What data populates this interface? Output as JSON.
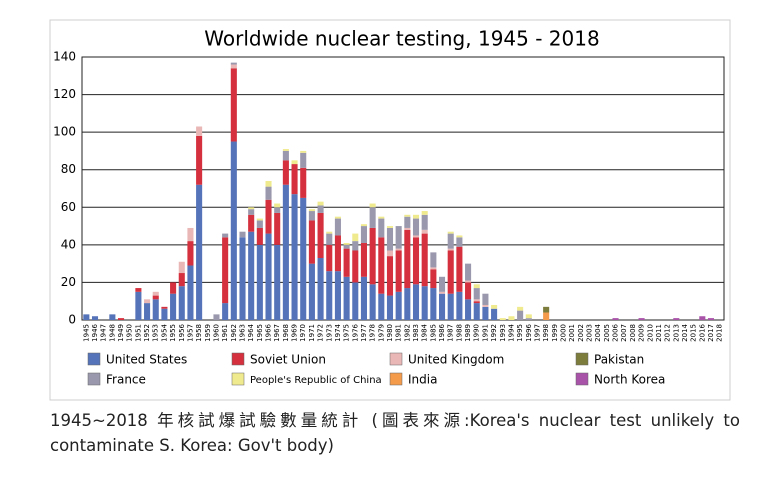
{
  "chart_data": {
    "type": "bar",
    "stacked": true,
    "title": "Worldwide nuclear testing, 1945 - 2018",
    "categories": [
      "1945",
      "1946",
      "1947",
      "1948",
      "1949",
      "1950",
      "1951",
      "1952",
      "1953",
      "1954",
      "1955",
      "1956",
      "1957",
      "1958",
      "1959",
      "1960",
      "1961",
      "1962",
      "1963",
      "1964",
      "1965",
      "1966",
      "1967",
      "1968",
      "1969",
      "1970",
      "1971",
      "1972",
      "1973",
      "1974",
      "1975",
      "1976",
      "1977",
      "1978",
      "1979",
      "1980",
      "1981",
      "1982",
      "1983",
      "1984",
      "1985",
      "1986",
      "1987",
      "1988",
      "1989",
      "1990",
      "1991",
      "1992",
      "1993",
      "1994",
      "1995",
      "1996",
      "1997",
      "1998",
      "1999",
      "2000",
      "2001",
      "2002",
      "2003",
      "2004",
      "2005",
      "2006",
      "2007",
      "2008",
      "2009",
      "2010",
      "2011",
      "2012",
      "2013",
      "2014",
      "2015",
      "2016",
      "2017",
      "2018"
    ],
    "series": [
      {
        "name": "United States",
        "color": "#5573b8",
        "values": [
          3,
          2,
          0,
          3,
          0,
          0,
          15,
          9,
          11,
          6,
          14,
          18,
          29,
          72,
          0,
          0,
          9,
          95,
          44,
          47,
          40,
          46,
          40,
          72,
          67,
          65,
          30,
          33,
          26,
          26,
          23,
          20,
          23,
          19,
          14,
          13,
          15,
          17,
          19,
          18,
          17,
          14,
          14,
          15,
          11,
          9,
          7,
          6,
          0,
          0,
          0,
          0,
          0,
          0,
          0,
          0,
          0,
          0,
          0,
          0,
          0,
          0,
          0,
          0,
          0,
          0,
          0,
          0,
          0,
          0,
          0,
          0,
          0,
          0
        ]
      },
      {
        "name": "Soviet Union",
        "color": "#d4303d",
        "values": [
          0,
          0,
          0,
          0,
          1,
          0,
          2,
          0,
          2,
          1,
          6,
          7,
          13,
          26,
          0,
          0,
          35,
          39,
          0,
          9,
          9,
          18,
          17,
          13,
          16,
          16,
          23,
          24,
          14,
          19,
          15,
          17,
          18,
          30,
          30,
          21,
          22,
          31,
          25,
          28,
          10,
          0,
          23,
          24,
          9,
          1,
          0,
          0,
          0,
          0,
          0,
          0,
          0,
          0,
          0,
          0,
          0,
          0,
          0,
          0,
          0,
          0,
          0,
          0,
          0,
          0,
          0,
          0,
          0,
          0,
          0,
          0,
          0,
          0
        ]
      },
      {
        "name": "United Kingdom",
        "color": "#eab7b7",
        "values": [
          0,
          0,
          0,
          0,
          0,
          0,
          0,
          2,
          2,
          0,
          0,
          6,
          7,
          5,
          0,
          0,
          0,
          2,
          0,
          0,
          0,
          0,
          0,
          0,
          0,
          0,
          0,
          0,
          0,
          0,
          0,
          0,
          0,
          0,
          0,
          3,
          1,
          1,
          1,
          2,
          1,
          1,
          1,
          0,
          1,
          1,
          1,
          0,
          0,
          0,
          0,
          0,
          0,
          0,
          0,
          0,
          0,
          0,
          0,
          0,
          0,
          0,
          0,
          0,
          0,
          0,
          0,
          0,
          0,
          0,
          0,
          0,
          0,
          0
        ]
      },
      {
        "name": "France",
        "color": "#9a98ad",
        "values": [
          0,
          0,
          0,
          0,
          0,
          0,
          0,
          0,
          0,
          0,
          0,
          0,
          0,
          0,
          0,
          3,
          2,
          1,
          3,
          3,
          4,
          7,
          3,
          5,
          0,
          8,
          5,
          4,
          6,
          9,
          2,
          5,
          9,
          11,
          10,
          12,
          12,
          6,
          9,
          8,
          8,
          8,
          8,
          5,
          9,
          6,
          6,
          0,
          0,
          0,
          5,
          1,
          0,
          0,
          0,
          0,
          0,
          0,
          0,
          0,
          0,
          0,
          0,
          0,
          0,
          0,
          0,
          0,
          0,
          0,
          0,
          0,
          0,
          0
        ]
      },
      {
        "name": "People's Republic of China",
        "color": "#f0ea8e",
        "values": [
          0,
          0,
          0,
          0,
          0,
          0,
          0,
          0,
          0,
          0,
          0,
          0,
          0,
          0,
          0,
          0,
          0,
          0,
          0,
          1,
          1,
          3,
          2,
          1,
          2,
          1,
          1,
          2,
          1,
          1,
          1,
          4,
          1,
          2,
          1,
          1,
          0,
          1,
          2,
          2,
          0,
          0,
          1,
          1,
          0,
          2,
          0,
          2,
          1,
          2,
          2,
          2,
          0,
          0,
          0,
          0,
          0,
          0,
          0,
          0,
          0,
          0,
          0,
          0,
          0,
          0,
          0,
          0,
          0,
          0,
          0,
          0,
          0,
          0
        ]
      },
      {
        "name": "India",
        "color": "#f39a4b",
        "values": [
          0,
          0,
          0,
          0,
          0,
          0,
          0,
          0,
          0,
          0,
          0,
          0,
          0,
          0,
          0,
          0,
          0,
          0,
          0,
          0,
          0,
          0,
          0,
          0,
          0,
          0,
          0,
          0,
          0,
          0,
          0,
          0,
          0,
          0,
          0,
          0,
          0,
          0,
          0,
          0,
          0,
          0,
          0,
          0,
          0,
          0,
          0,
          0,
          0,
          0,
          0,
          0,
          0,
          4,
          0,
          0,
          0,
          0,
          0,
          0,
          0,
          0,
          0,
          0,
          0,
          0,
          0,
          0,
          0,
          0,
          0,
          0,
          0,
          0
        ]
      },
      {
        "name": "Pakistan",
        "color": "#7c7c3c",
        "values": [
          0,
          0,
          0,
          0,
          0,
          0,
          0,
          0,
          0,
          0,
          0,
          0,
          0,
          0,
          0,
          0,
          0,
          0,
          0,
          0,
          0,
          0,
          0,
          0,
          0,
          0,
          0,
          0,
          0,
          0,
          0,
          0,
          0,
          0,
          0,
          0,
          0,
          0,
          0,
          0,
          0,
          0,
          0,
          0,
          0,
          0,
          0,
          0,
          0,
          0,
          0,
          0,
          0,
          3,
          0,
          0,
          0,
          0,
          0,
          0,
          0,
          0,
          0,
          0,
          0,
          0,
          0,
          0,
          0,
          0,
          0,
          0,
          0,
          0
        ]
      },
      {
        "name": "North Korea",
        "color": "#a852a8",
        "values": [
          0,
          0,
          0,
          0,
          0,
          0,
          0,
          0,
          0,
          0,
          0,
          0,
          0,
          0,
          0,
          0,
          0,
          0,
          0,
          0,
          0,
          0,
          0,
          0,
          0,
          0,
          0,
          0,
          0,
          0,
          0,
          0,
          0,
          0,
          0,
          0,
          0,
          0,
          0,
          0,
          0,
          0,
          0,
          0,
          0,
          0,
          0,
          0,
          0,
          0,
          0,
          0,
          0,
          0,
          0,
          0,
          0,
          0,
          0,
          0,
          0,
          1,
          0,
          0,
          1,
          0,
          0,
          0,
          1,
          0,
          0,
          2,
          1,
          0
        ]
      }
    ],
    "ylim": [
      0,
      140
    ],
    "yticks": [
      0,
      20,
      40,
      60,
      80,
      100,
      120,
      140
    ],
    "grid": true,
    "caption": "1945~2018 年核試爆試驗數量統計 (圖表來源:Korea's nuclear test unlikely to contaminate S. Korea: Gov't body)"
  }
}
